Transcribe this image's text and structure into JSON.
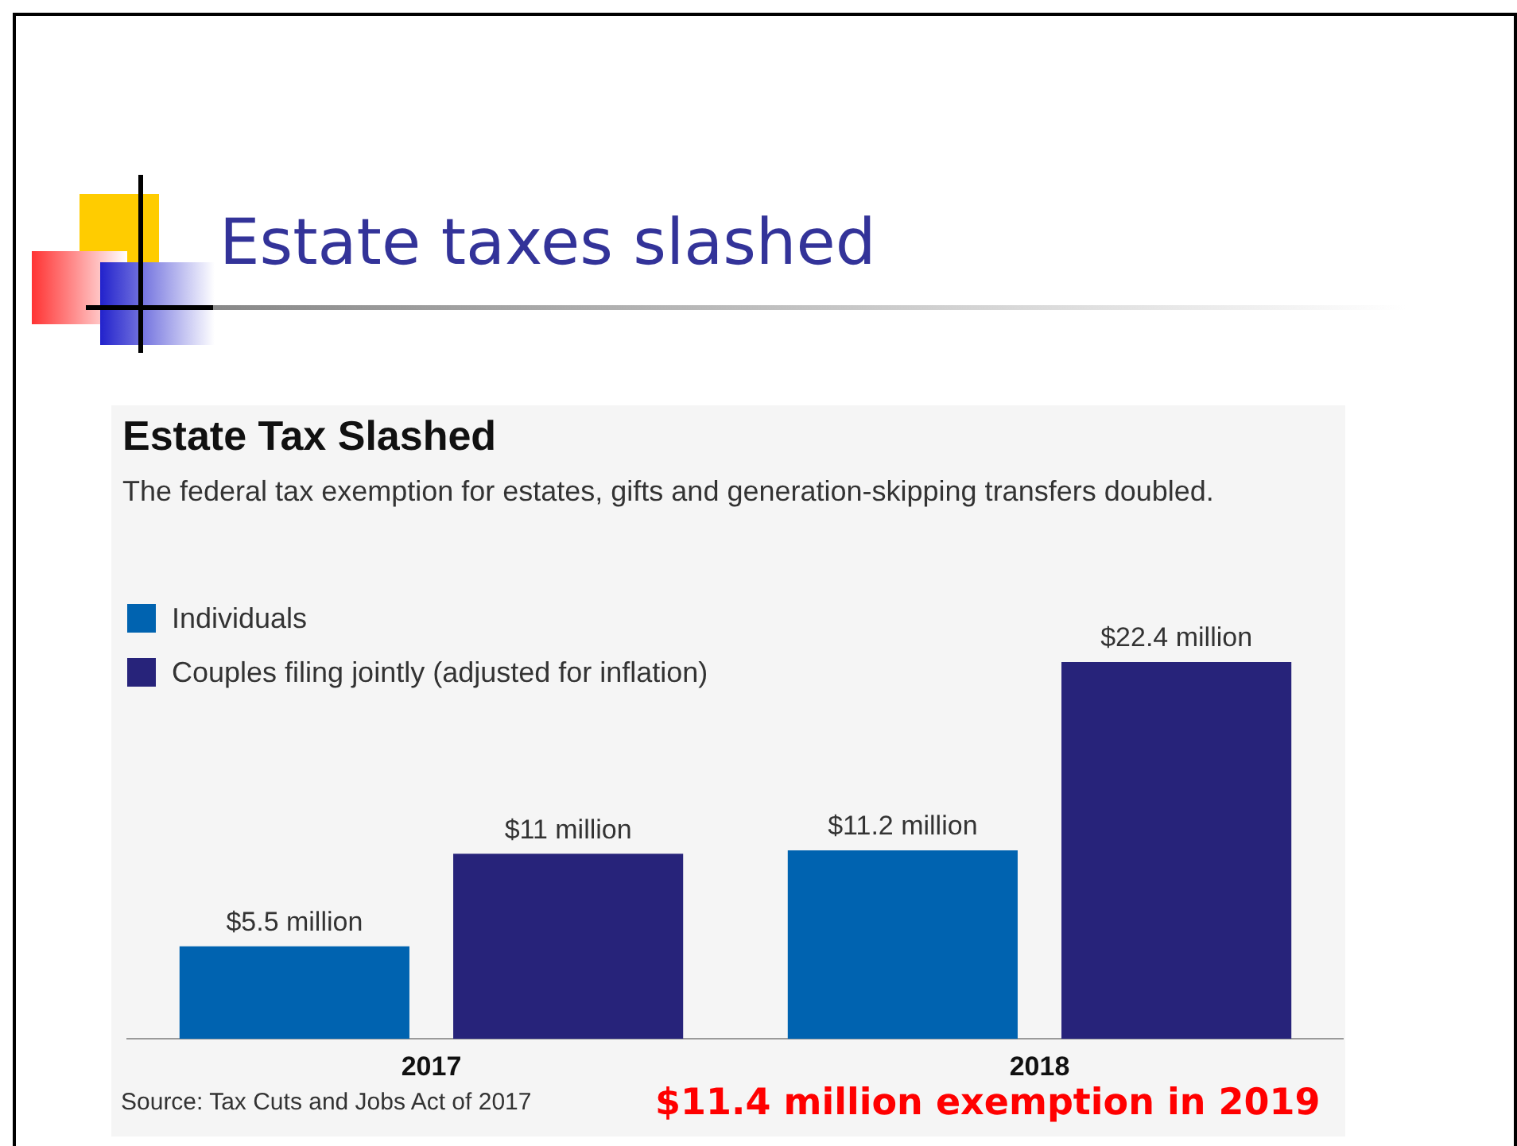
{
  "chart_data": {
    "type": "bar",
    "title": "Estate Tax Slashed",
    "subtitle": "The federal tax exemption for estates, gifts and generation-skipping transfers doubled.",
    "categories": [
      "2017",
      "2018"
    ],
    "series": [
      {
        "name": "Individuals",
        "color": "#0063b0",
        "values": [
          5.5,
          11.2
        ],
        "value_labels": [
          "$5.5 million",
          "$11.2 million"
        ]
      },
      {
        "name": "Couples filing jointly (adjusted for inflation)",
        "color": "#27237a",
        "values": [
          11,
          22.4
        ],
        "value_labels": [
          "$11 million",
          "$22.4 million"
        ]
      }
    ],
    "legend": "top left",
    "annotations": [
      "Estate taxes slashed",
      "Source: Tax Cuts and Jobs Act of 2017",
      "$11.4 million exemption in 2019"
    ]
  }
}
